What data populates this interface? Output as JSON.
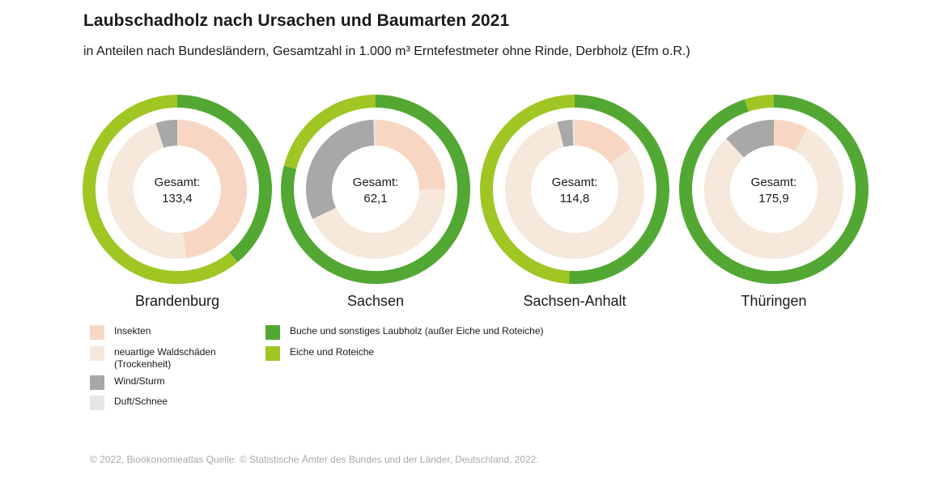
{
  "title": "Laubschadholz nach Ursachen und Baumarten 2021",
  "subtitle": "in Anteilen nach Bundesländern, Gesamtzahl in 1.000 m³ Erntefestmeter ohne Rinde, Derbholz (Efm o.R.)",
  "total_label": "Gesamt:",
  "colors": {
    "insekten": "#f7d7c4",
    "trockenheit": "#f6e8db",
    "wind": "#a8a8a8",
    "duft": "#e6e6e6",
    "buche": "#52a833",
    "eiche": "#a0c624"
  },
  "legend": {
    "causes": [
      {
        "key": "insekten",
        "label": "Insekten",
        "sub": ""
      },
      {
        "key": "trockenheit",
        "label": "neuartige Waldschäden",
        "sub": "(Trockenheit)"
      },
      {
        "key": "wind",
        "label": "Wind/Sturm",
        "sub": ""
      },
      {
        "key": "duft",
        "label": "Duft/Schnee",
        "sub": ""
      }
    ],
    "species": [
      {
        "key": "buche",
        "label": "Buche und sonstiges Laubholz (außer Eiche und Roteiche)"
      },
      {
        "key": "eiche",
        "label": "Eiche und Roteiche"
      }
    ]
  },
  "chart_data": [
    {
      "type": "pie",
      "region": "Brandenburg",
      "total": "133,4",
      "inner_ring_causes": [
        {
          "key": "insekten",
          "label": "Insekten",
          "value": 48
        },
        {
          "key": "trockenheit",
          "label": "neuartige Waldschäden (Trockenheit)",
          "value": 47
        },
        {
          "key": "wind",
          "label": "Wind/Sturm",
          "value": 5
        },
        {
          "key": "duft",
          "label": "Duft/Schnee",
          "value": 0
        }
      ],
      "outer_ring_species": [
        {
          "key": "buche",
          "label": "Buche und sonstiges Laubholz (außer Eiche und Roteiche)",
          "value": 39
        },
        {
          "key": "eiche",
          "label": "Eiche und Roteiche",
          "value": 61
        }
      ]
    },
    {
      "type": "pie",
      "region": "Sachsen",
      "total": "62,1",
      "inner_ring_causes": [
        {
          "key": "insekten",
          "label": "Insekten",
          "value": 25
        },
        {
          "key": "trockenheit",
          "label": "neuartige Waldschäden (Trockenheit)",
          "value": 43
        },
        {
          "key": "wind",
          "label": "Wind/Sturm",
          "value": 31.5
        },
        {
          "key": "duft",
          "label": "Duft/Schnee",
          "value": 0.5
        }
      ],
      "outer_ring_species": [
        {
          "key": "buche",
          "label": "Buche und sonstiges Laubholz (außer Eiche und Roteiche)",
          "value": 79
        },
        {
          "key": "eiche",
          "label": "Eiche und Roteiche",
          "value": 21
        }
      ]
    },
    {
      "type": "pie",
      "region": "Sachsen-Anhalt",
      "total": "114,8",
      "inner_ring_causes": [
        {
          "key": "insekten",
          "label": "Insekten",
          "value": 15
        },
        {
          "key": "trockenheit",
          "label": "neuartige Waldschäden (Trockenheit)",
          "value": 81
        },
        {
          "key": "wind",
          "label": "Wind/Sturm",
          "value": 3.5
        },
        {
          "key": "duft",
          "label": "Duft/Schnee",
          "value": 0.5
        }
      ],
      "outer_ring_species": [
        {
          "key": "buche",
          "label": "Buche und sonstiges Laubholz (außer Eiche und Roteiche)",
          "value": 51
        },
        {
          "key": "eiche",
          "label": "Eiche und Roteiche",
          "value": 49
        }
      ]
    },
    {
      "type": "pie",
      "region": "Thüringen",
      "total": "175,9",
      "inner_ring_causes": [
        {
          "key": "insekten",
          "label": "Insekten",
          "value": 8
        },
        {
          "key": "trockenheit",
          "label": "neuartige Waldschäden (Trockenheit)",
          "value": 80
        },
        {
          "key": "wind",
          "label": "Wind/Sturm",
          "value": 12
        },
        {
          "key": "duft",
          "label": "Duft/Schnee",
          "value": 0
        }
      ],
      "outer_ring_species": [
        {
          "key": "buche",
          "label": "Buche und sonstiges Laubholz (außer Eiche und Roteiche)",
          "value": 95
        },
        {
          "key": "eiche",
          "label": "Eiche und Roteiche",
          "value": 5
        }
      ]
    }
  ],
  "footer": "© 2022, Bioökonomieatlas Quelle: © Statistische Ämter des Bundes und der Länder, Deutschland, 2022."
}
